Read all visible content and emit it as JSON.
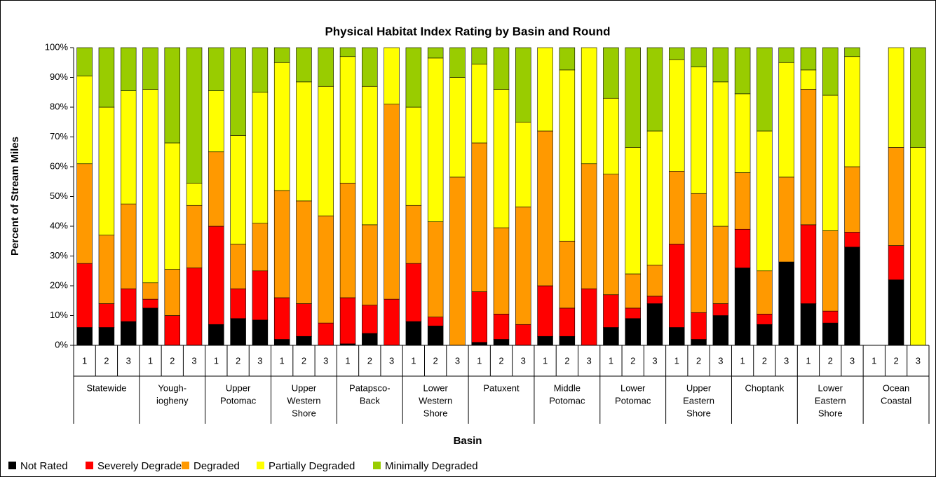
{
  "chart_data": {
    "type": "stacked_bar",
    "title": "Physical Habitat Index Rating by Basin and Round",
    "y_label": "Percent of Stream Miles",
    "x_label": "Basin",
    "ylim": [
      0,
      100
    ],
    "yticks": [
      {
        "value": 0,
        "label": "0%"
      },
      {
        "value": 10,
        "label": "10%"
      },
      {
        "value": 20,
        "label": "20%"
      },
      {
        "value": 30,
        "label": "30%"
      },
      {
        "value": 40,
        "label": "40%"
      },
      {
        "value": 50,
        "label": "50%"
      },
      {
        "value": 60,
        "label": "60%"
      },
      {
        "value": 70,
        "label": "70%"
      },
      {
        "value": 80,
        "label": "80%"
      },
      {
        "value": 90,
        "label": "90%"
      },
      {
        "value": 100,
        "label": "100%"
      }
    ],
    "grid": false,
    "legend": "bottom",
    "groups": [
      [
        "Statewide"
      ],
      [
        "Yough-",
        "iogheny"
      ],
      [
        "Upper",
        "Potomac"
      ],
      [
        "Upper",
        "Western",
        "Shore"
      ],
      [
        "Patapsco-",
        "Back"
      ],
      [
        "Lower",
        "Western",
        "Shore"
      ],
      [
        "Patuxent"
      ],
      [
        "Middle",
        "Potomac"
      ],
      [
        "Lower",
        "Potomac"
      ],
      [
        "Upper",
        "Eastern",
        "Shore"
      ],
      [
        "Choptank"
      ],
      [
        "Lower",
        "Eastern",
        "Shore"
      ],
      [
        "Ocean",
        "Coastal"
      ]
    ],
    "categories": [
      "1",
      "2",
      "3",
      "1",
      "2",
      "3",
      "1",
      "2",
      "3",
      "1",
      "2",
      "3",
      "1",
      "2",
      "3",
      "1",
      "2",
      "3",
      "1",
      "2",
      "3",
      "1",
      "2",
      "3",
      "1",
      "2",
      "3",
      "1",
      "2",
      "3",
      "1",
      "2",
      "3",
      "1",
      "2",
      "3",
      "1",
      "2",
      "3"
    ],
    "series": [
      {
        "name": "Not Rated",
        "color": "#000000",
        "values": [
          6,
          6,
          8,
          12.5,
          0,
          0,
          7,
          9,
          8.5,
          2,
          3,
          0,
          0.5,
          4,
          0,
          8,
          6.5,
          0,
          1,
          2,
          0,
          3,
          3,
          0,
          6,
          9,
          14,
          6,
          2,
          10,
          26,
          7,
          28,
          14,
          7.5,
          33,
          0,
          22,
          0
        ]
      },
      {
        "name": "Severely Degraded",
        "color": "#ff0000",
        "values": [
          21.5,
          8,
          11,
          3,
          10,
          26,
          33,
          10,
          16.5,
          14,
          11,
          7.5,
          15.5,
          9.5,
          15.5,
          19.5,
          3,
          0,
          17,
          8.5,
          7,
          17,
          9.5,
          19,
          11,
          3.5,
          2.5,
          28,
          9,
          4,
          13,
          3.5,
          0,
          26.5,
          4,
          5,
          0,
          11.5,
          0
        ]
      },
      {
        "name": "Degraded",
        "color": "#ff9900",
        "values": [
          33.5,
          23,
          28.5,
          5.5,
          15.5,
          21,
          25,
          15,
          16,
          36,
          34.5,
          36,
          38.5,
          27,
          65.5,
          19.5,
          32,
          56.5,
          50,
          29,
          39.5,
          52,
          22.5,
          42,
          40.5,
          11.5,
          10.5,
          24.5,
          40,
          26,
          19,
          14.5,
          28.5,
          45.5,
          27,
          22,
          0,
          33,
          0
        ]
      },
      {
        "name": "Partially Degraded",
        "color": "#ffff00",
        "values": [
          29.5,
          43,
          38,
          65,
          42.5,
          7.5,
          20.5,
          36.5,
          44,
          43,
          40,
          43.5,
          42.5,
          46.5,
          19,
          33,
          55,
          33.5,
          26.5,
          46.5,
          28.5,
          28,
          57.5,
          39,
          25.5,
          42.5,
          45,
          37.5,
          42.5,
          48.5,
          26.5,
          47,
          38.5,
          6.5,
          45.5,
          37,
          0,
          33.5,
          66.5
        ]
      },
      {
        "name": "Minimally Degraded",
        "color": "#99cc00",
        "values": [
          9.5,
          20,
          14.5,
          14,
          32,
          45.5,
          14.5,
          29.5,
          15,
          5,
          11.5,
          13,
          3,
          13,
          0,
          20,
          3.5,
          10,
          5.5,
          14,
          25,
          0,
          7.5,
          0,
          17,
          33.5,
          28,
          4,
          6.5,
          11.5,
          15.5,
          28,
          5,
          7.5,
          16,
          3,
          0,
          0,
          33.5
        ]
      }
    ]
  }
}
